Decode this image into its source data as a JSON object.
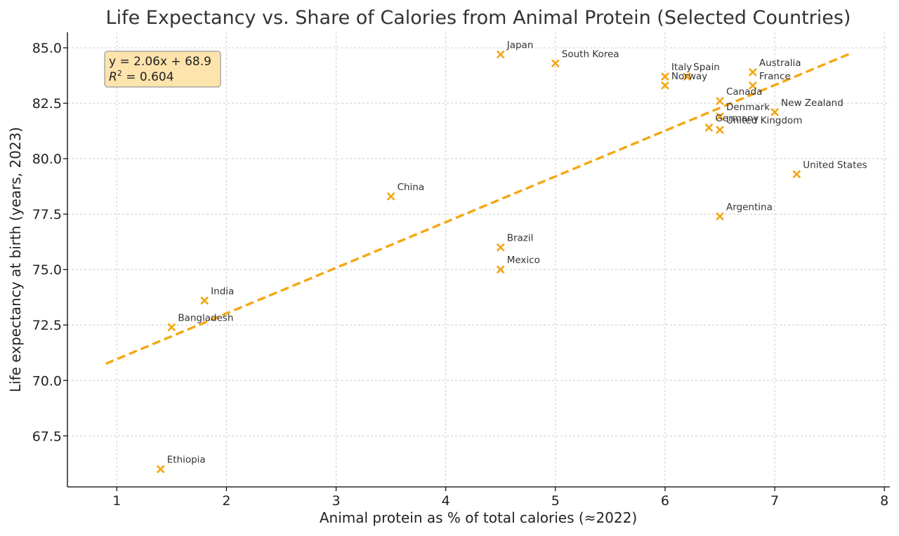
{
  "chart_data": {
    "type": "scatter",
    "title": "Life Expectancy vs. Share of Calories from Animal Protein (Selected Countries)",
    "xlabel": "Animal protein as % of total calories (≈2022)",
    "ylabel": "Life expectancy at birth (years, 2023)",
    "xlim": [
      0.55,
      8.05
    ],
    "ylim": [
      65.2,
      85.7
    ],
    "x_ticks": [
      1,
      2,
      3,
      4,
      5,
      6,
      7,
      8
    ],
    "x_tick_labels": [
      "1",
      "2",
      "3",
      "4",
      "5",
      "6",
      "7",
      "8"
    ],
    "y_ticks": [
      67.5,
      70.0,
      72.5,
      75.0,
      77.5,
      80.0,
      82.5,
      85.0
    ],
    "y_tick_labels": [
      "67.5",
      "70.0",
      "72.5",
      "75.0",
      "77.5",
      "80.0",
      "82.5",
      "85.0"
    ],
    "grid": true,
    "marker_color": "#f5a613",
    "points": [
      {
        "label": "Japan",
        "x": 4.5,
        "y": 84.7
      },
      {
        "label": "South Korea",
        "x": 5.0,
        "y": 84.3
      },
      {
        "label": "Italy",
        "x": 6.0,
        "y": 83.7
      },
      {
        "label": "Spain",
        "x": 6.2,
        "y": 83.7
      },
      {
        "label": "Norway",
        "x": 6.0,
        "y": 83.3
      },
      {
        "label": "Australia",
        "x": 6.8,
        "y": 83.9
      },
      {
        "label": "France",
        "x": 6.8,
        "y": 83.3
      },
      {
        "label": "Canada",
        "x": 6.5,
        "y": 82.6
      },
      {
        "label": "Denmark",
        "x": 6.5,
        "y": 81.9
      },
      {
        "label": "Germany",
        "x": 6.4,
        "y": 81.4
      },
      {
        "label": "United Kingdom",
        "x": 6.5,
        "y": 81.3
      },
      {
        "label": "New Zealand",
        "x": 7.0,
        "y": 82.1
      },
      {
        "label": "United States",
        "x": 7.2,
        "y": 79.3
      },
      {
        "label": "China",
        "x": 3.5,
        "y": 78.3
      },
      {
        "label": "Argentina",
        "x": 6.5,
        "y": 77.4
      },
      {
        "label": "Brazil",
        "x": 4.5,
        "y": 76.0
      },
      {
        "label": "Mexico",
        "x": 4.5,
        "y": 75.0
      },
      {
        "label": "India",
        "x": 1.8,
        "y": 73.6
      },
      {
        "label": "Bangladesh",
        "x": 1.5,
        "y": 72.4
      },
      {
        "label": "Ethiopia",
        "x": 1.4,
        "y": 66.0
      }
    ],
    "trendline": {
      "slope": 2.06,
      "intercept": 68.9,
      "x_range": [
        0.9,
        7.7
      ],
      "equation_text": "y = 2.06x + 68.9",
      "r2_value": " = 0.604",
      "r2_symbol": "R",
      "r2_superscript": "2"
    }
  }
}
